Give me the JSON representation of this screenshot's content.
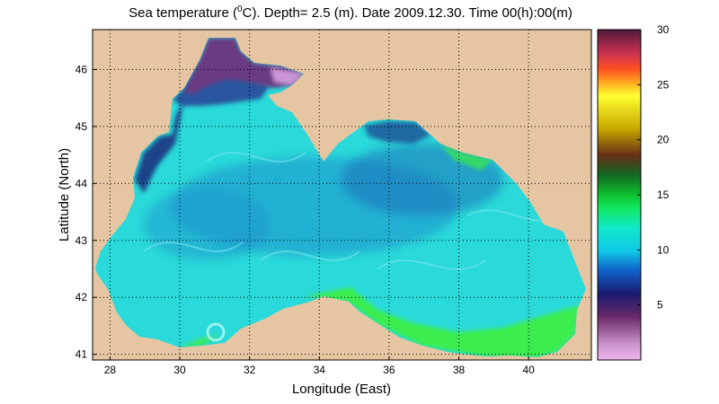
{
  "title": {
    "prefix": "Sea temperature (",
    "superscript": "0",
    "unit_suffix": "C). Depth=  2.5 (m). Date 2009.12.30. Time 00(h):00(m)"
  },
  "map": {
    "xlabel": "Longitude (East)",
    "ylabel": "Latitude (North)",
    "xlim": [
      27.5,
      41.8
    ],
    "ylim": [
      40.9,
      46.7
    ],
    "xticks": [
      "28",
      "30",
      "32",
      "34",
      "36",
      "38",
      "40"
    ],
    "yticks": [
      "41",
      "42",
      "43",
      "44",
      "45",
      "46"
    ],
    "grid": "dotted",
    "land_color": "#e6c6a2",
    "water_color": "#2ad9d9"
  },
  "colorbar": {
    "range": [
      0,
      30
    ],
    "ticks": [
      "5",
      "10",
      "15",
      "20",
      "25",
      "30"
    ]
  },
  "colors": {
    "cold_violet": "#6a3a82",
    "cold_navy": "#1a3a8c",
    "mid_cyan": "#2ad9d9",
    "warm_green": "#3ef03e"
  }
}
